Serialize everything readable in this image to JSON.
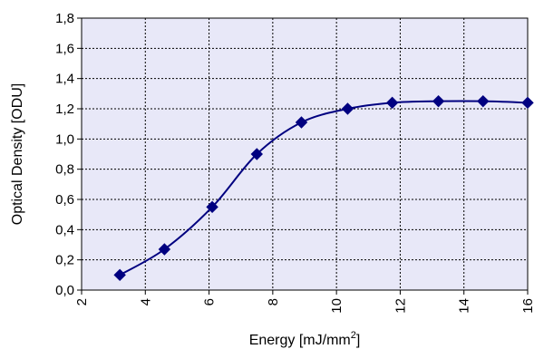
{
  "chart_data": {
    "type": "line",
    "xlabel": "Energy [mJ/mm",
    "xlabel_sup": "2",
    "xlabel_end": "]",
    "ylabel": "Optical Density [ODU]",
    "xlim": [
      2,
      16
    ],
    "ylim": [
      0.0,
      1.8
    ],
    "x_ticks": [
      "2",
      "4",
      "6",
      "8",
      "10",
      "12",
      "14",
      "16"
    ],
    "y_ticks": [
      "0,0",
      "0,2",
      "0,4",
      "0,6",
      "0,8",
      "1,0",
      "1,2",
      "1,4",
      "1,6",
      "1,8"
    ],
    "grid": true,
    "smooth": true,
    "series": [
      {
        "x": [
          3.2,
          4.6,
          6.1,
          7.5,
          8.9,
          10.35,
          11.75,
          13.2,
          14.6,
          16.0
        ],
        "y": [
          0.1,
          0.27,
          0.55,
          0.9,
          1.11,
          1.2,
          1.24,
          1.25,
          1.25,
          1.24
        ],
        "marker": "diamond"
      }
    ],
    "colors": {
      "plot_background": "#e8e8f8",
      "series": "#000080",
      "grid": "#000000"
    }
  }
}
